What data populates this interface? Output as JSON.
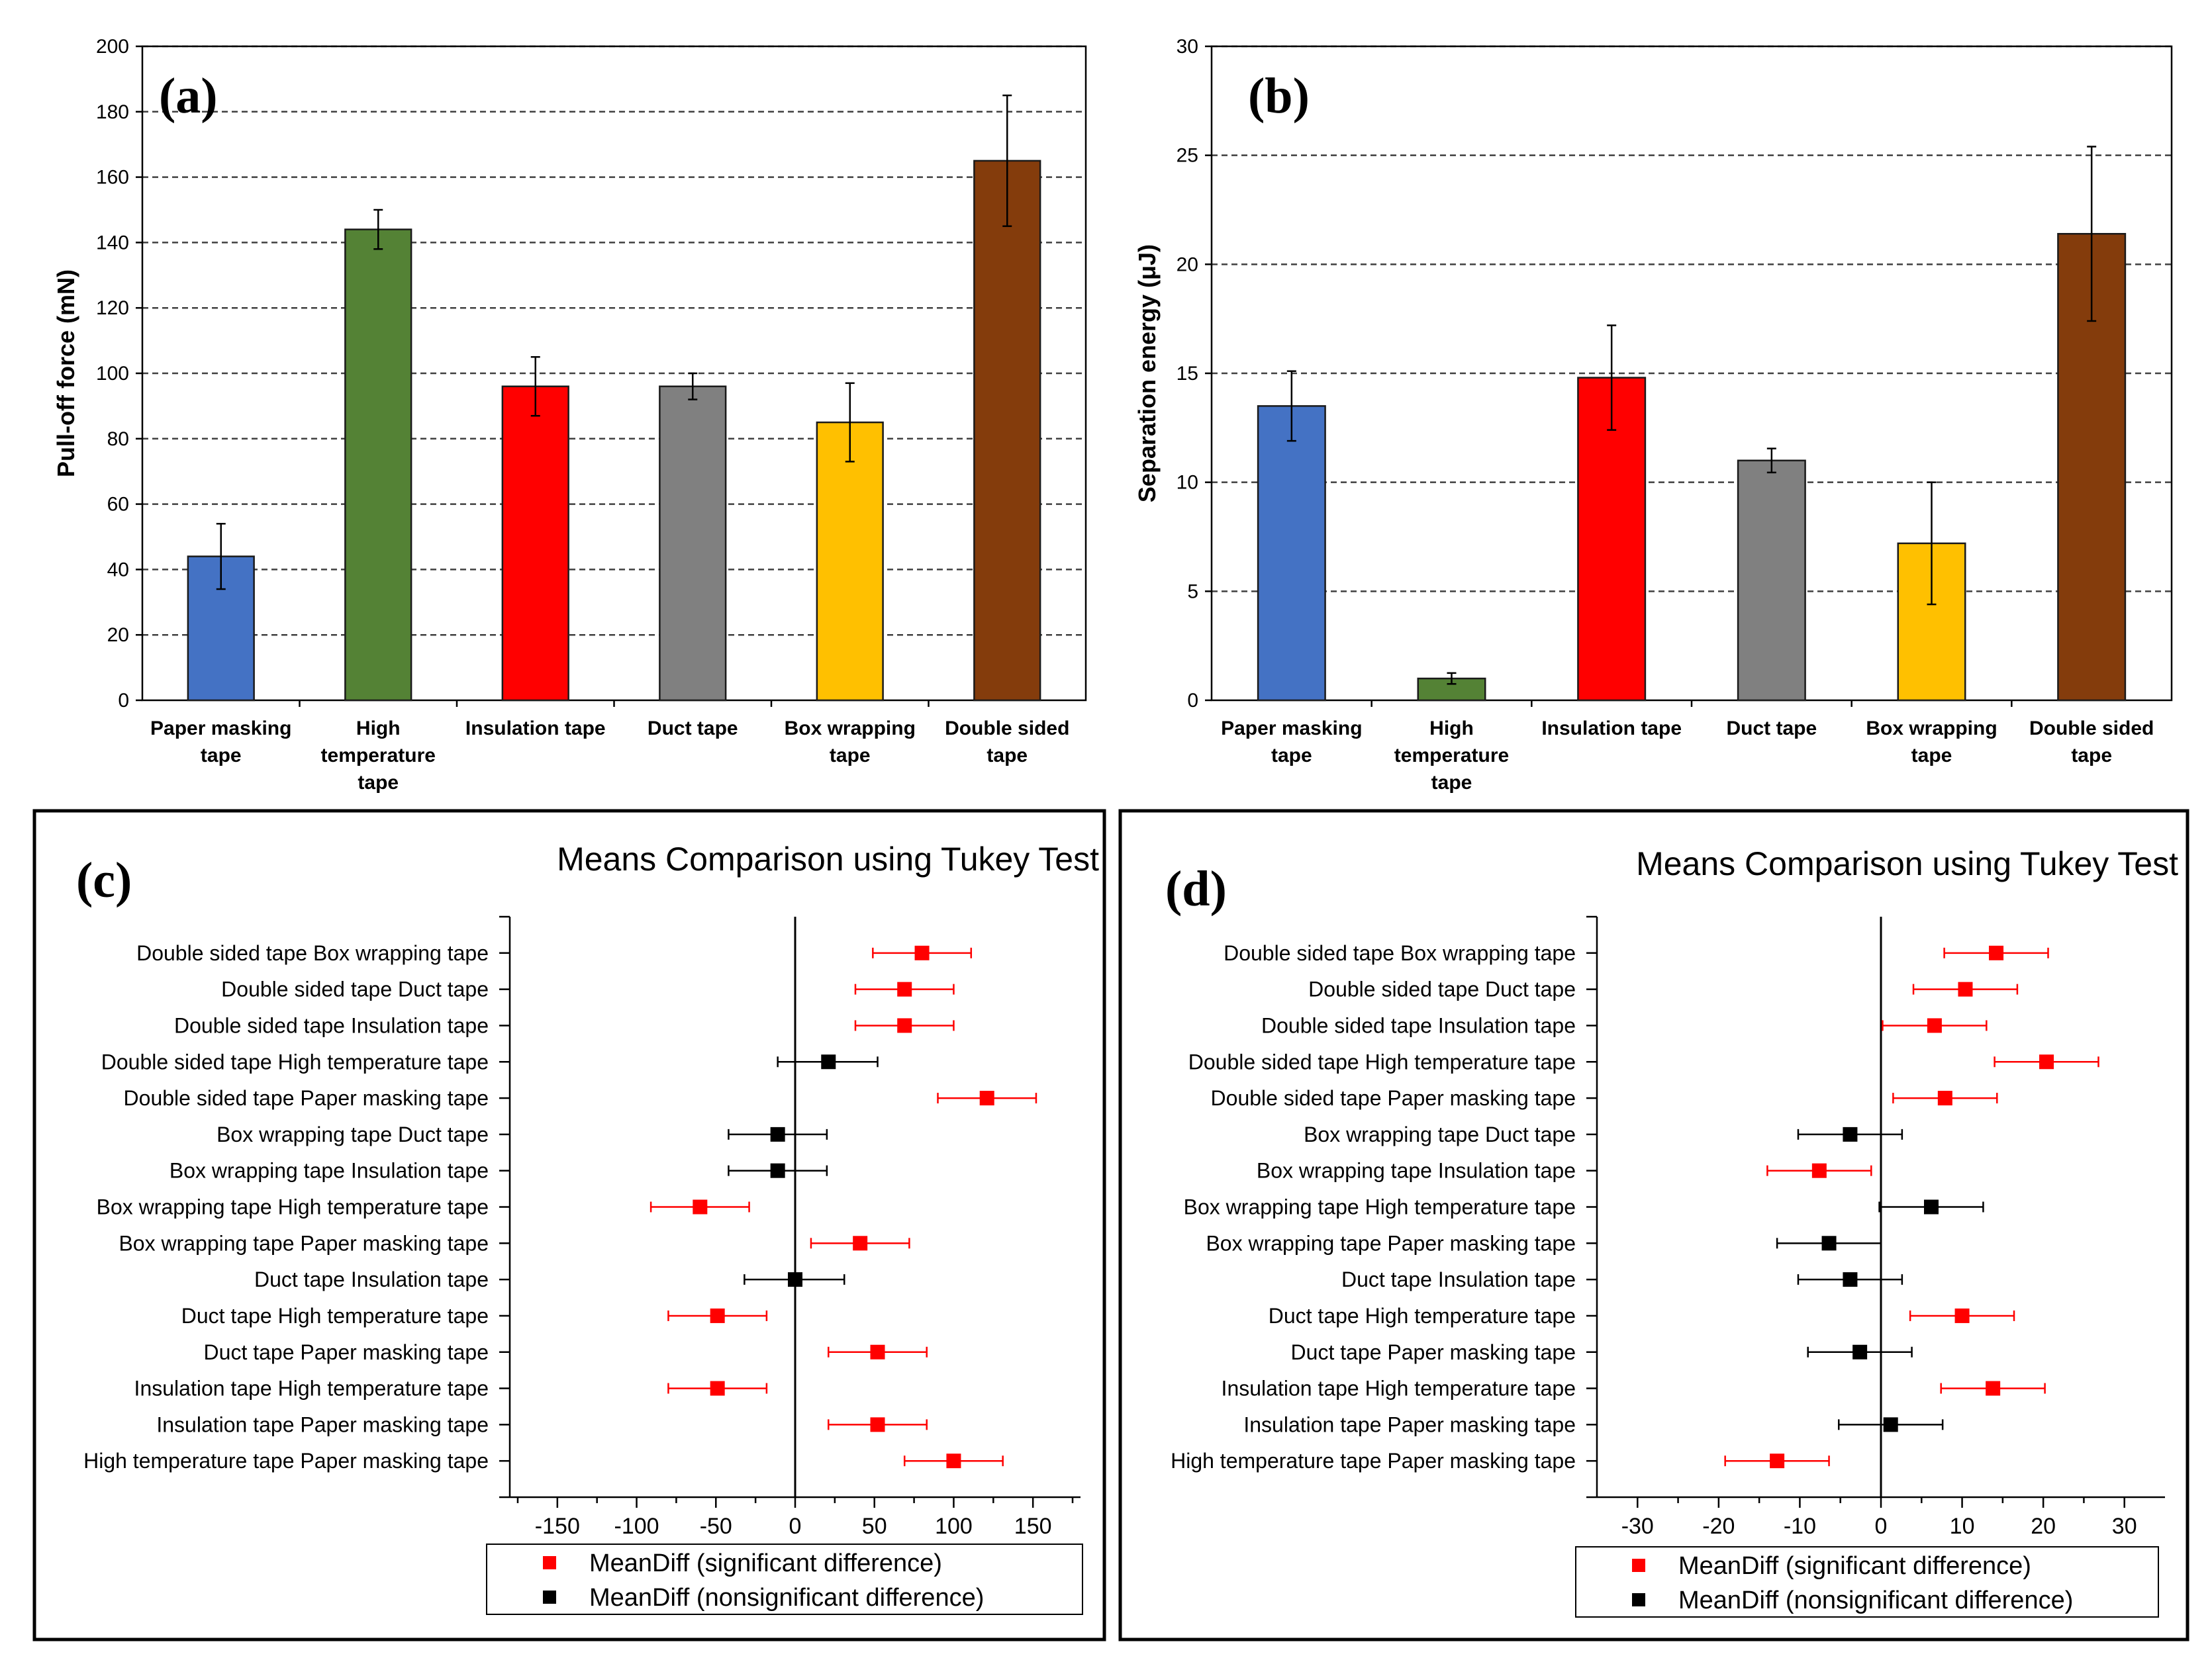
{
  "chart_data": [
    {
      "id": "a",
      "type": "bar",
      "panel_label": "(a)",
      "ylabel": "Pull-off force (mN)",
      "ylim": [
        0,
        200
      ],
      "yticks": [
        0,
        20,
        40,
        60,
        80,
        100,
        120,
        140,
        160,
        180,
        200
      ],
      "categories": [
        [
          "Paper masking",
          "tape"
        ],
        [
          "High",
          "temperature",
          "tape"
        ],
        [
          "Insulation tape"
        ],
        [
          "Duct tape"
        ],
        [
          "Box wrapping",
          "tape"
        ],
        [
          "Double sided",
          "tape"
        ]
      ],
      "values": [
        44,
        144,
        96,
        96,
        85,
        165
      ],
      "errors": [
        10,
        6,
        9,
        4,
        12,
        20
      ],
      "colors": [
        "#4472C4",
        "#548235",
        "#FF0000",
        "#808080",
        "#FFC000",
        "#843C0C"
      ],
      "grid": "dashed horizontal"
    },
    {
      "id": "b",
      "type": "bar",
      "panel_label": "(b)",
      "ylabel": "Separation energy (μJ)",
      "ylim": [
        0,
        30
      ],
      "yticks": [
        0,
        5,
        10,
        15,
        20,
        25,
        30
      ],
      "categories": [
        [
          "Paper masking",
          "tape"
        ],
        [
          "High",
          "temperature",
          "tape"
        ],
        [
          "Insulation tape"
        ],
        [
          "Duct tape"
        ],
        [
          "Box wrapping",
          "tape"
        ],
        [
          "Double sided",
          "tape"
        ]
      ],
      "values": [
        13.5,
        1.0,
        14.8,
        11.0,
        7.2,
        21.4
      ],
      "errors": [
        1.6,
        0.25,
        2.4,
        0.55,
        2.8,
        4.0
      ],
      "colors": [
        "#4472C4",
        "#548235",
        "#FF0000",
        "#808080",
        "#FFC000",
        "#843C0C"
      ],
      "grid": "dashed horizontal"
    },
    {
      "id": "c",
      "type": "scatter",
      "panel_label": "(c)",
      "title": "Means Comparison using Tukey Test",
      "xlim": [
        -180,
        180
      ],
      "xticks": [
        -150,
        -100,
        -50,
        0,
        50,
        100,
        150
      ],
      "legend": [
        "MeanDiff (significant difference)",
        "MeanDiff (nonsignificant difference)"
      ],
      "legend_colors": [
        "#FF0000",
        "#000000"
      ],
      "rows": [
        {
          "a": "Double sided tape",
          "b": "Box wrapping tape",
          "mean": 80,
          "lo": 49,
          "hi": 111,
          "sig": true
        },
        {
          "a": "Double sided tape",
          "b": "Duct tape",
          "mean": 69,
          "lo": 38,
          "hi": 100,
          "sig": true
        },
        {
          "a": "Double sided tape",
          "b": "Insulation tape",
          "mean": 69,
          "lo": 38,
          "hi": 100,
          "sig": true
        },
        {
          "a": "Double sided tape",
          "b": "High temperature tape",
          "mean": 21,
          "lo": -11,
          "hi": 52,
          "sig": false
        },
        {
          "a": "Double sided tape",
          "b": "Paper masking tape",
          "mean": 121,
          "lo": 90,
          "hi": 152,
          "sig": true
        },
        {
          "a": "Box wrapping tape",
          "b": "Duct tape",
          "mean": -11,
          "lo": -42,
          "hi": 20,
          "sig": false
        },
        {
          "a": "Box wrapping tape",
          "b": "Insulation tape",
          "mean": -11,
          "lo": -42,
          "hi": 20,
          "sig": false
        },
        {
          "a": "Box wrapping tape",
          "b": "High temperature tape",
          "mean": -60,
          "lo": -91,
          "hi": -29,
          "sig": true
        },
        {
          "a": "Box wrapping tape",
          "b": "Paper masking tape",
          "mean": 41,
          "lo": 10,
          "hi": 72,
          "sig": true
        },
        {
          "a": "Duct tape",
          "b": "Insulation tape",
          "mean": 0,
          "lo": -32,
          "hi": 31,
          "sig": false
        },
        {
          "a": "Duct tape",
          "b": "High temperature tape",
          "mean": -49,
          "lo": -80,
          "hi": -18,
          "sig": true
        },
        {
          "a": "Duct tape",
          "b": "Paper masking tape",
          "mean": 52,
          "lo": 21,
          "hi": 83,
          "sig": true
        },
        {
          "a": "Insulation tape",
          "b": "High temperature tape",
          "mean": -49,
          "lo": -80,
          "hi": -18,
          "sig": true
        },
        {
          "a": "Insulation tape",
          "b": "Paper masking tape",
          "mean": 52,
          "lo": 21,
          "hi": 83,
          "sig": true
        },
        {
          "a": "High temperature tape",
          "b": "Paper masking tape",
          "mean": 100,
          "lo": 69,
          "hi": 131,
          "sig": true
        }
      ]
    },
    {
      "id": "d",
      "type": "scatter",
      "panel_label": "(d)",
      "title": "Means Comparison using Tukey Test",
      "xlim": [
        -35,
        35
      ],
      "xticks": [
        -30,
        -20,
        -10,
        0,
        10,
        20,
        30
      ],
      "legend": [
        "MeanDiff (significant difference)",
        "MeanDiff (nonsignificant difference)"
      ],
      "legend_colors": [
        "#FF0000",
        "#000000"
      ],
      "rows": [
        {
          "a": "Double sided tape",
          "b": "Box wrapping tape",
          "mean": 14.2,
          "lo": 7.8,
          "hi": 20.6,
          "sig": true
        },
        {
          "a": "Double sided tape",
          "b": "Duct tape",
          "mean": 10.4,
          "lo": 4.0,
          "hi": 16.8,
          "sig": true
        },
        {
          "a": "Double sided tape",
          "b": "Insulation tape",
          "mean": 6.6,
          "lo": 0.2,
          "hi": 13.0,
          "sig": true
        },
        {
          "a": "Double sided tape",
          "b": "High temperature tape",
          "mean": 20.4,
          "lo": 14.0,
          "hi": 26.8,
          "sig": true
        },
        {
          "a": "Double sided tape",
          "b": "Paper masking tape",
          "mean": 7.9,
          "lo": 1.5,
          "hi": 14.3,
          "sig": true
        },
        {
          "a": "Box wrapping tape",
          "b": "Duct tape",
          "mean": -3.8,
          "lo": -10.2,
          "hi": 2.6,
          "sig": false
        },
        {
          "a": "Box wrapping tape",
          "b": "Insulation tape",
          "mean": -7.6,
          "lo": -14.0,
          "hi": -1.2,
          "sig": true
        },
        {
          "a": "Box wrapping tape",
          "b": "High temperature tape",
          "mean": 6.2,
          "lo": -0.2,
          "hi": 12.6,
          "sig": false
        },
        {
          "a": "Box wrapping tape",
          "b": "Paper masking tape",
          "mean": -6.4,
          "lo": -12.8,
          "hi": 0.0,
          "sig": false
        },
        {
          "a": "Duct tape",
          "b": "Insulation tape",
          "mean": -3.8,
          "lo": -10.2,
          "hi": 2.6,
          "sig": false
        },
        {
          "a": "Duct tape",
          "b": "High temperature tape",
          "mean": 10.0,
          "lo": 3.6,
          "hi": 16.4,
          "sig": true
        },
        {
          "a": "Duct tape",
          "b": "Paper masking tape",
          "mean": -2.6,
          "lo": -9.0,
          "hi": 3.8,
          "sig": false
        },
        {
          "a": "Insulation tape",
          "b": "High temperature tape",
          "mean": 13.8,
          "lo": 7.4,
          "hi": 20.2,
          "sig": true
        },
        {
          "a": "Insulation tape",
          "b": "Paper masking tape",
          "mean": 1.2,
          "lo": -5.2,
          "hi": 7.6,
          "sig": false
        },
        {
          "a": "High temperature tape",
          "b": "Paper masking tape",
          "mean": -12.8,
          "lo": -19.2,
          "hi": -6.4,
          "sig": true
        }
      ]
    }
  ]
}
